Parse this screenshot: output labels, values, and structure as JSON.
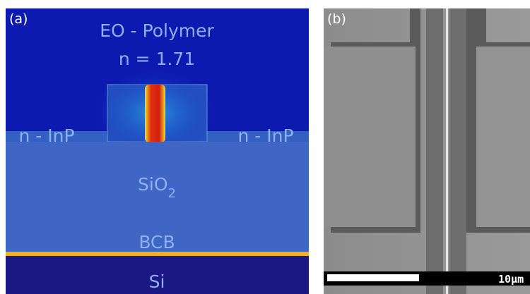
{
  "panel_a": {
    "label": "(a)",
    "polymer": "EO - Polymer",
    "index": "n = 1.71",
    "inp_left": "n - InP",
    "inp_right": "n - InP",
    "oxide": {
      "text": "SiO",
      "subscript": "2"
    },
    "bcb": "BCB",
    "substrate": "Si"
  },
  "panel_b": {
    "label": "(b)",
    "scale_bar": "10µm"
  }
}
